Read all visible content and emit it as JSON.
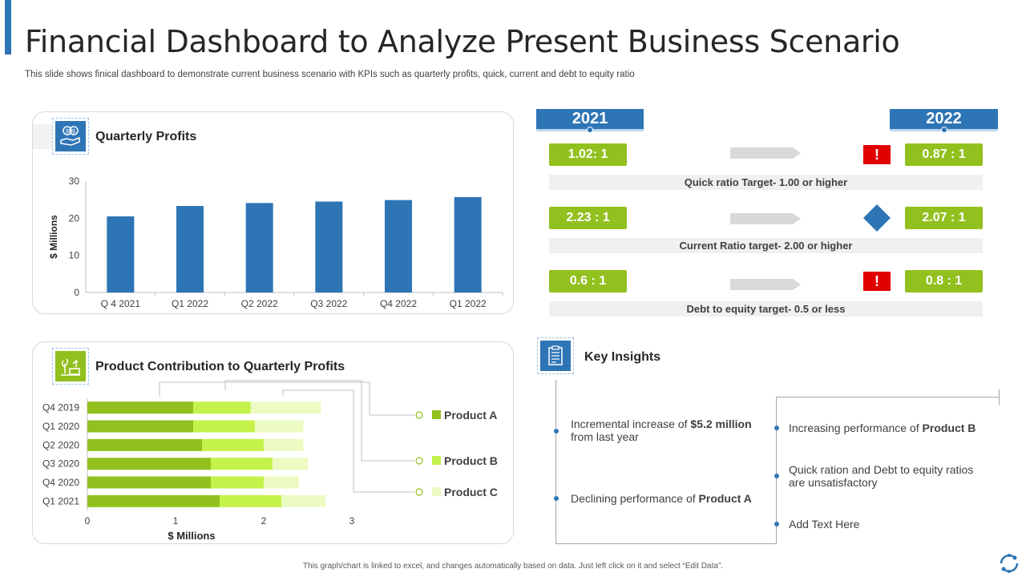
{
  "header": {
    "title": "Financial Dashboard to Analyze Present Business Scenario",
    "subtitle": "This slide shows finical dashboard to demonstrate current business scenario with KPIs such as quarterly profits, quick, current and debt to equity ratio"
  },
  "quarterly_profits": {
    "title": "Quarterly Profits",
    "icon": "money-hand-icon"
  },
  "product_contribution": {
    "title": "Product Contribution to Quarterly Profits",
    "icon": "plant-growth-icon"
  },
  "chart_data": [
    {
      "type": "bar",
      "title": "Quarterly Profits",
      "categories": [
        "Q 4 2021",
        "Q1 2022",
        "Q2 2022",
        "Q3 2022",
        "Q4 2022",
        "Q1 2022"
      ],
      "values": [
        20.5,
        23.3,
        24.1,
        24.5,
        24.9,
        25.7
      ],
      "ylabel": "$ Millions",
      "ylim": [
        0,
        30
      ],
      "yticks": [
        "0",
        "10",
        "20",
        "30"
      ],
      "color": "#2e75b6"
    },
    {
      "type": "bar",
      "orientation": "horizontal",
      "stacked": true,
      "title": "Product Contribution to Quarterly Profits",
      "categories": [
        "Q4 2019",
        "Q1 2020",
        "Q2 2020",
        "Q3 2020",
        "Q4 2020",
        "Q1 2021"
      ],
      "series": [
        {
          "name": "Product A",
          "values": [
            1.2,
            1.2,
            1.3,
            1.4,
            1.4,
            1.5
          ],
          "color": "#92c01f"
        },
        {
          "name": "Product B",
          "values": [
            0.65,
            0.7,
            0.7,
            0.7,
            0.6,
            0.7
          ],
          "color": "#c5f24a"
        },
        {
          "name": "Product C",
          "values": [
            0.8,
            0.55,
            0.45,
            0.4,
            0.4,
            0.5
          ],
          "color": "#ecfbc2"
        }
      ],
      "xlabel": "$ Millions",
      "xlim": [
        0,
        3
      ],
      "xticks": [
        "0",
        "1",
        "2",
        "3"
      ],
      "legend_position": "right"
    }
  ],
  "ratios": {
    "year_left": "2021",
    "year_right": "2022",
    "rows": [
      {
        "left": "1.02: 1",
        "right": "0.87 : 1",
        "status": "warning",
        "status_icon": "exclamation-icon",
        "target": "Quick ratio Target- 1.00 or higher"
      },
      {
        "left": "2.23 : 1",
        "right": "2.07 : 1",
        "status": "neutral",
        "status_icon": "diamond-icon",
        "target": "Current Ratio target- 2.00 or higher"
      },
      {
        "left": "0.6 : 1",
        "right": "0.8 : 1",
        "status": "warning",
        "status_icon": "exclamation-icon",
        "target": "Debt to equity target- 0.5 or less"
      }
    ],
    "warning_symbol": "!"
  },
  "insights": {
    "title": "Key Insights",
    "icon": "clipboard-icon",
    "items": {
      "i1_pre": "Incremental increase of ",
      "i1_bold": "$5.2 million",
      "i1_post": " from last year",
      "i2_pre": "Declining performance of ",
      "i2_bold": "Product A",
      "i3_pre": "Increasing performance of ",
      "i3_bold": "Product B",
      "i4": "Quick ration and Debt to equity ratios are unsatisfactory",
      "i5": "Add Text Here"
    }
  },
  "footer": "This graph/chart is linked to excel, and changes automatically based on data. Just left click on it and select “Edit Data”.",
  "colors": {
    "accent": "#2e75b6",
    "green": "#92c01f",
    "warning": "#e00000"
  }
}
